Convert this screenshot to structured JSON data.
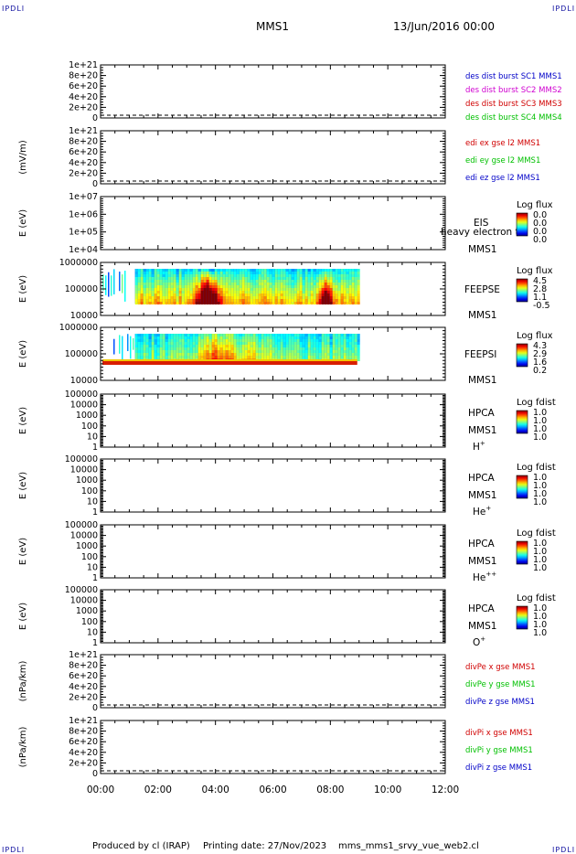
{
  "corner_labels": {
    "top_left": "IPDLI",
    "top_right": "IPDLI",
    "bottom_left": "IPDLI",
    "bottom_right": "IPDLI"
  },
  "header": {
    "spacecraft": "MMS1",
    "date": "13/Jun/2016 00:00"
  },
  "footer": {
    "produced_by": "Produced by cl (IRAP)",
    "printing_date": "Printing date: 27/Nov/2023",
    "script": "mms_mms1_srvy_vue_web2.cl"
  },
  "chart_data": {
    "type": "stacked-panels",
    "time_axis": {
      "ticks": [
        "00:00",
        "02:00",
        "04:00",
        "06:00",
        "08:00",
        "10:00",
        "12:00"
      ],
      "range_hours": [
        0,
        12
      ]
    },
    "panels": [
      {
        "id": "p1",
        "kind": "line",
        "ylabel": "",
        "ticks": [
          "0",
          "2e+20",
          "4e+20",
          "6e+20",
          "8e+20",
          "1e+21"
        ],
        "ylim": [
          0,
          1e+21
        ],
        "legend": [
          {
            "text": "des dist burst SC1 MMS1",
            "color": "#0000c8"
          },
          {
            "text": "des dist burst SC2 MMS2",
            "color": "#d000d0"
          },
          {
            "text": "des dist burst SC3 MMS3",
            "color": "#d00000"
          },
          {
            "text": "des dist burst SC4 MMS4",
            "color": "#00c000"
          }
        ]
      },
      {
        "id": "p2",
        "kind": "line",
        "ylabel": "(mV/m)",
        "ticks": [
          "0",
          "2e+20",
          "4e+20",
          "6e+20",
          "8e+20",
          "1e+21"
        ],
        "ylim": [
          0,
          1e+21
        ],
        "legend": [
          {
            "text": "edi ex gse l2 MMS1",
            "color": "#d00000"
          },
          {
            "text": "edi ey gse l2 MMS1",
            "color": "#00c000"
          },
          {
            "text": "edi ez gse l2 MMS1",
            "color": "#0000c8"
          }
        ]
      },
      {
        "id": "p3",
        "kind": "spectrogram",
        "ylabel": "E (eV)",
        "ticks": [
          "1e+04",
          "1e+05",
          "1e+06",
          "1e+07"
        ],
        "ylim": [
          10000.0,
          10000000.0
        ],
        "scale": "log",
        "labels": [
          "EIS",
          "MMS1"
        ],
        "overlay": "heavy electron to",
        "colorbar": {
          "title": "Log flux",
          "values": [
            "0.0",
            "0.0",
            "0.0",
            "0.0"
          ]
        }
      },
      {
        "id": "p4",
        "kind": "spectrogram",
        "ylabel": "E (eV)",
        "ticks": [
          "10000",
          "100000",
          "1000000"
        ],
        "ylim": [
          10000.0,
          1000000.0
        ],
        "scale": "log",
        "labels": [
          "FEEPSE",
          "MMS1"
        ],
        "colorbar": {
          "title": "Log flux",
          "values": [
            "4.5",
            "2.8",
            "1.1",
            "-0.5"
          ]
        },
        "data_interval_hours": [
          0.0,
          9.0
        ]
      },
      {
        "id": "p5",
        "kind": "spectrogram",
        "ylabel": "E (eV)",
        "ticks": [
          "10000",
          "100000",
          "1000000"
        ],
        "ylim": [
          10000.0,
          1000000.0
        ],
        "scale": "log",
        "labels": [
          "FEEPSI",
          "MMS1"
        ],
        "colorbar": {
          "title": "Log flux",
          "values": [
            "4.3",
            "2.9",
            "1.6",
            "0.2"
          ]
        },
        "data_interval_hours": [
          0.0,
          9.0
        ]
      },
      {
        "id": "p6",
        "kind": "spectrogram",
        "ylabel": "E (eV)",
        "ticks": [
          "1",
          "10",
          "100",
          "1000",
          "10000",
          "100000"
        ],
        "ylim": [
          1,
          100000.0
        ],
        "scale": "log",
        "labels": [
          "HPCA",
          "MMS1"
        ],
        "species": "H",
        "species_sup": "+",
        "colorbar": {
          "title": "Log fdist",
          "values": [
            "1.0",
            "1.0",
            "1.0",
            "1.0"
          ]
        }
      },
      {
        "id": "p7",
        "kind": "spectrogram",
        "ylabel": "E (eV)",
        "ticks": [
          "1",
          "10",
          "100",
          "1000",
          "10000",
          "100000"
        ],
        "ylim": [
          1,
          100000.0
        ],
        "scale": "log",
        "labels": [
          "HPCA",
          "MMS1"
        ],
        "species": "He",
        "species_sup": "+",
        "colorbar": {
          "title": "Log fdist",
          "values": [
            "1.0",
            "1.0",
            "1.0",
            "1.0"
          ]
        }
      },
      {
        "id": "p8",
        "kind": "spectrogram",
        "ylabel": "E (eV)",
        "ticks": [
          "1",
          "10",
          "100",
          "1000",
          "10000",
          "100000"
        ],
        "ylim": [
          1,
          100000.0
        ],
        "scale": "log",
        "labels": [
          "HPCA",
          "MMS1"
        ],
        "species": "He",
        "species_sup": "++",
        "colorbar": {
          "title": "Log fdist",
          "values": [
            "1.0",
            "1.0",
            "1.0",
            "1.0"
          ]
        }
      },
      {
        "id": "p9",
        "kind": "spectrogram",
        "ylabel": "E (eV)",
        "ticks": [
          "1",
          "10",
          "100",
          "1000",
          "10000",
          "100000"
        ],
        "ylim": [
          1,
          100000.0
        ],
        "scale": "log",
        "labels": [
          "HPCA",
          "MMS1"
        ],
        "species": "O",
        "species_sup": "+",
        "colorbar": {
          "title": "Log fdist",
          "values": [
            "1.0",
            "1.0",
            "1.0",
            "1.0"
          ]
        }
      },
      {
        "id": "p10",
        "kind": "line",
        "ylabel": "(nPa/km)",
        "ticks": [
          "0",
          "2e+20",
          "4e+20",
          "6e+20",
          "8e+20",
          "1e+21"
        ],
        "ylim": [
          0,
          1e+21
        ],
        "legend": [
          {
            "text": "divPe x gse MMS1",
            "color": "#d00000"
          },
          {
            "text": "divPe y gse MMS1",
            "color": "#00c000"
          },
          {
            "text": "divPe z gse MMS1",
            "color": "#0000c8"
          }
        ]
      },
      {
        "id": "p11",
        "kind": "line",
        "ylabel": "(nPa/km)",
        "ticks": [
          "0",
          "2e+20",
          "4e+20",
          "6e+20",
          "8e+20",
          "1e+21"
        ],
        "ylim": [
          0,
          1e+21
        ],
        "legend": [
          {
            "text": "divPi x gse MMS1",
            "color": "#d00000"
          },
          {
            "text": "divPi y gse MMS1",
            "color": "#00c000"
          },
          {
            "text": "divPi z gse MMS1",
            "color": "#0000c8"
          }
        ]
      }
    ]
  }
}
